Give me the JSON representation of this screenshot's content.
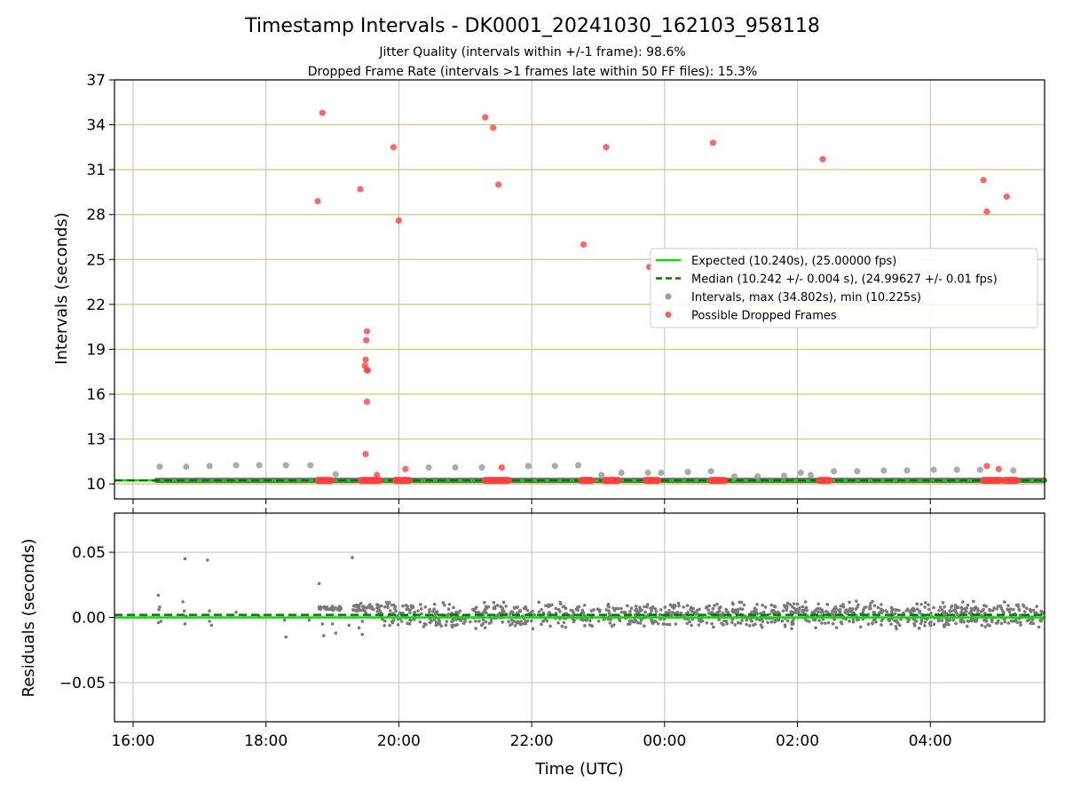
{
  "title": "Timestamp Intervals - DK0001_20241030_162103_958118",
  "subtitle_1": "Jitter Quality (intervals within +/-1 frame): 98.6%",
  "subtitle_2": "Dropped Frame Rate (intervals >1 frames late within 50 FF files): 15.3%",
  "colors": {
    "expected": "#00e000",
    "median": "#007a00",
    "intervals": "#9e9e9e",
    "residual_points": "#7a7a7a",
    "dropped": "#ff4040",
    "hgrid_top": "#d8c27a",
    "vgrid": "#c8c8c8"
  },
  "chart_data": [
    {
      "type": "scatter",
      "name": "intervals-panel",
      "ylabel": "Intervals (seconds)",
      "ylim": [
        9,
        37
      ],
      "yticks": [
        10,
        13,
        16,
        19,
        22,
        25,
        28,
        31,
        34,
        37
      ],
      "xlim_hours": [
        15.72,
        29.72
      ],
      "xticks_hours": [
        16,
        18,
        20,
        22,
        24,
        26,
        28
      ],
      "xtick_labels": [
        "16:00",
        "18:00",
        "20:00",
        "22:00",
        "00:00",
        "02:00",
        "04:00"
      ],
      "grid": "on",
      "legend_placement": "center-right",
      "legend": [
        {
          "key": "expected",
          "label": "Expected (10.240s), (25.00000 fps)"
        },
        {
          "key": "median",
          "label": "Median (10.242 +/- 0.004 s), (24.99627 +/- 0.01 fps)"
        },
        {
          "key": "intervals",
          "label": "Intervals, max (34.802s), min (10.225s)"
        },
        {
          "key": "dropped",
          "label": "Possible Dropped Frames"
        }
      ],
      "expected_value": 10.24,
      "median_value": 10.242,
      "interval_band": {
        "x_start": 16.35,
        "x_end": 29.72,
        "y": 10.24
      },
      "interval_outliers": [
        [
          16.4,
          11.15
        ],
        [
          16.8,
          11.15
        ],
        [
          17.15,
          11.2
        ],
        [
          17.55,
          11.25
        ],
        [
          17.9,
          11.25
        ],
        [
          18.3,
          11.25
        ],
        [
          18.67,
          11.25
        ],
        [
          19.05,
          10.65
        ],
        [
          20.45,
          11.1
        ],
        [
          20.85,
          11.1
        ],
        [
          21.25,
          11.1
        ],
        [
          21.95,
          11.2
        ],
        [
          22.35,
          11.2
        ],
        [
          22.7,
          11.25
        ],
        [
          23.05,
          10.6
        ],
        [
          23.35,
          10.75
        ],
        [
          23.75,
          10.75
        ],
        [
          23.95,
          10.75
        ],
        [
          24.35,
          10.8
        ],
        [
          24.7,
          10.85
        ],
        [
          25.05,
          10.5
        ],
        [
          25.4,
          10.5
        ],
        [
          25.8,
          10.55
        ],
        [
          26.05,
          10.75
        ],
        [
          26.2,
          10.6
        ],
        [
          26.55,
          10.85
        ],
        [
          26.9,
          10.85
        ],
        [
          27.3,
          10.9
        ],
        [
          27.65,
          10.9
        ],
        [
          28.05,
          10.95
        ],
        [
          28.4,
          10.95
        ],
        [
          28.75,
          10.95
        ],
        [
          29.25,
          10.9
        ]
      ],
      "dropped_frames": [
        [
          18.85,
          34.8
        ],
        [
          18.78,
          28.9
        ],
        [
          19.42,
          29.7
        ],
        [
          19.92,
          32.5
        ],
        [
          20.0,
          27.6
        ],
        [
          21.3,
          34.5
        ],
        [
          21.42,
          33.8
        ],
        [
          21.5,
          30.0
        ],
        [
          22.78,
          26.0
        ],
        [
          23.12,
          32.5
        ],
        [
          23.77,
          24.5
        ],
        [
          24.73,
          32.8
        ],
        [
          26.38,
          31.7
        ],
        [
          28.8,
          30.3
        ],
        [
          28.85,
          28.2
        ],
        [
          29.15,
          29.2
        ],
        [
          19.52,
          20.2
        ],
        [
          19.51,
          19.6
        ],
        [
          19.5,
          18.3
        ],
        [
          19.49,
          17.9
        ],
        [
          19.52,
          17.6
        ],
        [
          19.53,
          17.6
        ],
        [
          19.52,
          15.5
        ],
        [
          19.5,
          12.0
        ],
        [
          19.67,
          10.6
        ],
        [
          20.1,
          11.0
        ],
        [
          21.55,
          11.1
        ],
        [
          28.85,
          11.2
        ],
        [
          29.03,
          11.0
        ]
      ],
      "dropped_clusters": [
        [
          18.78,
          19.0
        ],
        [
          19.43,
          19.72
        ],
        [
          19.95,
          20.15
        ],
        [
          21.3,
          21.65
        ],
        [
          22.75,
          22.92
        ],
        [
          23.1,
          23.3
        ],
        [
          23.72,
          23.9
        ],
        [
          24.7,
          24.9
        ],
        [
          26.33,
          26.48
        ],
        [
          28.8,
          29.05
        ],
        [
          29.12,
          29.3
        ]
      ]
    },
    {
      "type": "scatter",
      "name": "residuals-panel",
      "xlabel": "Time (UTC)",
      "ylabel": "Residuals (seconds)",
      "ylim": [
        -0.08,
        0.08
      ],
      "yticks": [
        0.05,
        0.0,
        -0.05
      ],
      "ytick_labels": [
        "0.05",
        "0.00",
        "−0.05"
      ],
      "expected_value": 0.0,
      "median_value": 0.002,
      "early_points": [
        [
          16.38,
          0.017
        ],
        [
          16.39,
          0.006
        ],
        [
          16.4,
          0.008
        ],
        [
          16.38,
          -0.004
        ],
        [
          16.42,
          -0.003
        ],
        [
          16.75,
          0.012
        ],
        [
          16.77,
          0.005
        ],
        [
          16.8,
          0.001
        ],
        [
          16.78,
          -0.005
        ],
        [
          16.78,
          0.045
        ],
        [
          17.12,
          0.044
        ],
        [
          17.15,
          0.005
        ],
        [
          17.18,
          -0.006
        ],
        [
          17.15,
          -0.003
        ],
        [
          17.55,
          0.004
        ],
        [
          17.9,
          0.001
        ],
        [
          18.3,
          -0.015
        ],
        [
          18.28,
          -0.002
        ],
        [
          18.65,
          -0.002
        ],
        [
          18.8,
          0.026
        ],
        [
          18.85,
          -0.005
        ],
        [
          18.87,
          -0.014
        ],
        [
          19.0,
          -0.005
        ],
        [
          19.05,
          -0.012
        ],
        [
          19.3,
          0.046
        ],
        [
          19.25,
          -0.006
        ],
        [
          19.4,
          -0.008
        ],
        [
          19.45,
          -0.013
        ],
        [
          19.45,
          -0.003
        ]
      ],
      "dense_segments": [
        {
          "x": [
            18.8,
            19.15
          ],
          "center": 0.007,
          "spread": 0.002
        },
        {
          "x": [
            19.3,
            19.72
          ],
          "center": 0.007,
          "spread": 0.004
        },
        {
          "x": [
            19.72,
            29.72
          ],
          "center": 0.002,
          "spread": 0.011
        }
      ]
    }
  ]
}
